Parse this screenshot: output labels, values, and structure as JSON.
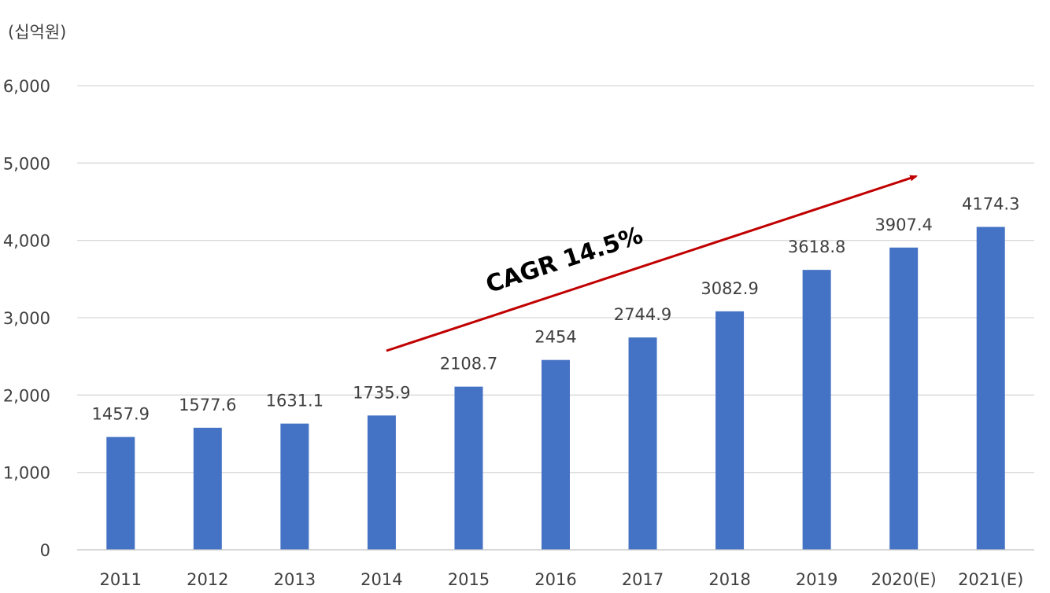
{
  "chart_data": {
    "type": "bar",
    "unit_label": "(십억원)",
    "categories": [
      "2011",
      "2012",
      "2013",
      "2014",
      "2015",
      "2016",
      "2017",
      "2018",
      "2019",
      "2020(E)",
      "2021(E)"
    ],
    "values": [
      1457.9,
      1577.6,
      1631.1,
      1735.9,
      2108.7,
      2454,
      2744.9,
      3082.9,
      3618.8,
      3907.4,
      4174.3
    ],
    "data_labels": [
      "1457.9",
      "1577.6",
      "1631.1",
      "1735.9",
      "2108.7",
      "2454",
      "2744.9",
      "3082.9",
      "3618.8",
      "3907.4",
      "4174.3"
    ],
    "ylim": [
      0,
      6000
    ],
    "y_ticks": [
      0,
      1000,
      2000,
      3000,
      4000,
      5000,
      6000
    ],
    "y_tick_labels": [
      "0",
      "1,000",
      "2,000",
      "3,000",
      "4,000",
      "5,000",
      "6,000"
    ],
    "grid": true,
    "bar_color": "#4472c4",
    "annotation": {
      "text": "CAGR 14.5%",
      "arrow_color": "#c00000",
      "from_category": "2014",
      "to_category": "2020(E)"
    }
  }
}
